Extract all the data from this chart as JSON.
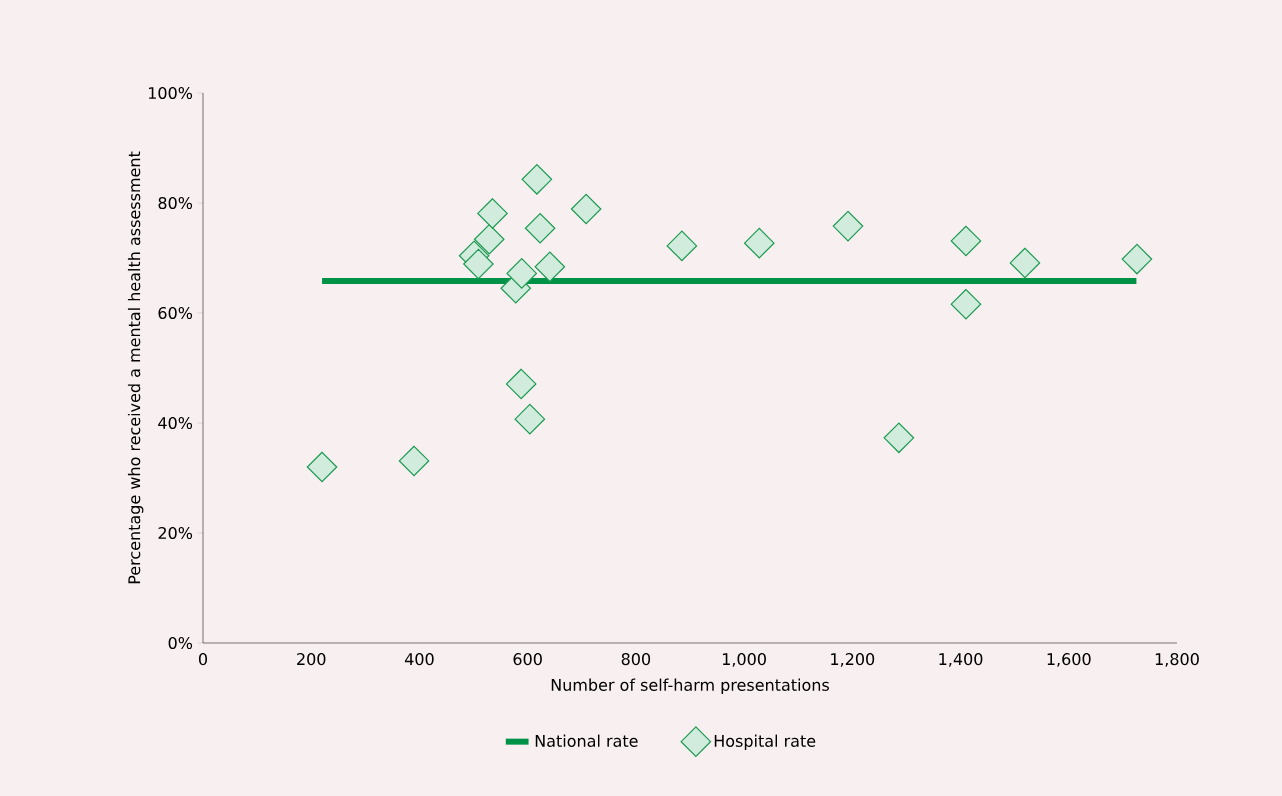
{
  "chart_data": {
    "type": "scatter",
    "xlabel": "Number of self-harm presentations",
    "ylabel": "Percentage who received a mental health assessment",
    "xlim": [
      0,
      1800
    ],
    "xticks": [
      0,
      200,
      400,
      {
        "value": 600,
        "label": "600"
      },
      800,
      {
        "value": 1000,
        "label": "1,000"
      },
      {
        "value": 1200,
        "label": "1,200"
      },
      {
        "value": 1400,
        "label": "1,400"
      },
      {
        "value": 1600,
        "label": "1,600"
      },
      {
        "value": 1800,
        "label": "1,800"
      }
    ],
    "ylim": [
      0,
      100
    ],
    "yticks": [
      {
        "value": 0,
        "label": "0%"
      },
      {
        "value": 20,
        "label": "20%"
      },
      {
        "value": 40,
        "label": "40%"
      },
      {
        "value": 60,
        "label": "60%"
      },
      {
        "value": 80,
        "label": "80%"
      },
      {
        "value": 100,
        "label": "100%"
      }
    ],
    "legend": "bottom",
    "grid": false,
    "series": [
      {
        "name": "National rate",
        "type": "line",
        "color": "#009247",
        "marker": "none",
        "line_style": "solid",
        "x": [
          220,
          1725
        ],
        "values": [
          65.8,
          65.8
        ]
      },
      {
        "name": "Hospital rate",
        "color": "#1a9a50",
        "marker": "diamond",
        "x": [
          220,
          390,
          501,
          509,
          529,
          535,
          578,
          589,
          588,
          604,
          617,
          623,
          641,
          708,
          885,
          1028,
          1192,
          1286,
          1410,
          1410,
          1519,
          1726
        ],
        "values": [
          32.0,
          33.1,
          70.4,
          68.9,
          73.4,
          78.1,
          64.5,
          67.2,
          47.1,
          40.7,
          84.3,
          75.4,
          68.4,
          78.9,
          72.2,
          72.7,
          75.8,
          37.3,
          73.1,
          61.6,
          69.1,
          69.8
        ]
      }
    ]
  }
}
